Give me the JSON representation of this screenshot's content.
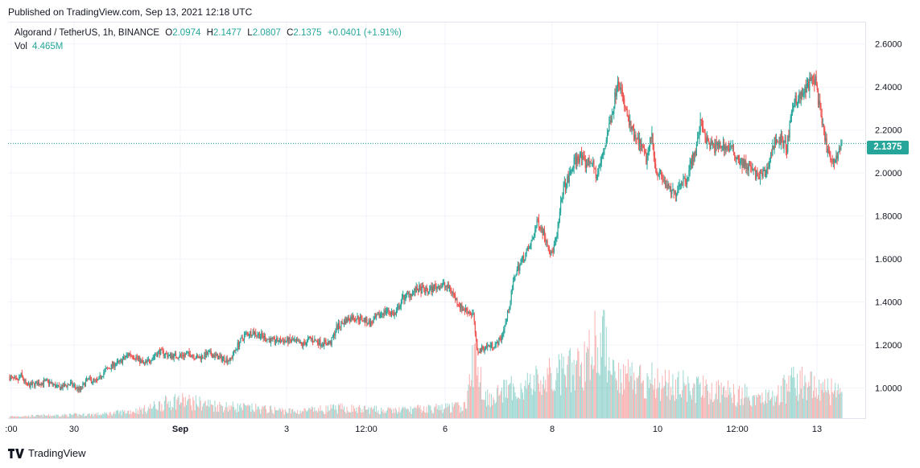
{
  "header": {
    "published": "Published on TradingView.com, Sep 13, 2021 12:18 UTC"
  },
  "legend": {
    "symbol": "Algorand / TetherUS, 1h, BINANCE",
    "open_label": "O",
    "open": "2.0974",
    "high_label": "H",
    "high": "2.1477",
    "low_label": "L",
    "low": "2.0807",
    "close_label": "C",
    "close": "2.1375",
    "change": "+0.0401 (+1.91%)"
  },
  "volume": {
    "label": "Vol",
    "value": "4.465M"
  },
  "last_price": "2.1375",
  "footer": {
    "brand": "TradingView"
  },
  "colors": {
    "up": "#26a69a",
    "down": "#ef5350",
    "grid": "#f0f3fa"
  },
  "chart_data": {
    "type": "candlestick",
    "y_ticks": [
      "2.6000",
      "2.4000",
      "2.2000",
      "2.0000",
      "1.8000",
      "1.6000",
      "1.4000",
      "1.2000",
      "1.0000"
    ],
    "x_ticks": [
      ":00",
      "30",
      "Sep",
      "3",
      "12:00",
      "6",
      "8",
      "10",
      "12:00",
      "13"
    ],
    "ylim": [
      0.86,
      2.7
    ],
    "last_value": 2.1375,
    "price_path": [
      [
        0,
        1.05
      ],
      [
        8,
        1.03
      ],
      [
        12,
        1.06
      ],
      [
        18,
        1.01
      ],
      [
        28,
        1.02
      ],
      [
        40,
        1.03
      ],
      [
        52,
        1.0
      ],
      [
        64,
        1.02
      ],
      [
        74,
        0.99
      ],
      [
        82,
        1.04
      ],
      [
        92,
        1.03
      ],
      [
        100,
        1.08
      ],
      [
        110,
        1.11
      ],
      [
        116,
        1.12
      ],
      [
        126,
        1.16
      ],
      [
        134,
        1.14
      ],
      [
        142,
        1.11
      ],
      [
        152,
        1.15
      ],
      [
        158,
        1.17
      ],
      [
        168,
        1.15
      ],
      [
        180,
        1.15
      ],
      [
        190,
        1.16
      ],
      [
        198,
        1.14
      ],
      [
        210,
        1.16
      ],
      [
        222,
        1.14
      ],
      [
        232,
        1.13
      ],
      [
        240,
        1.2
      ],
      [
        248,
        1.25
      ],
      [
        256,
        1.26
      ],
      [
        266,
        1.24
      ],
      [
        276,
        1.22
      ],
      [
        286,
        1.22
      ],
      [
        298,
        1.22
      ],
      [
        308,
        1.2
      ],
      [
        316,
        1.23
      ],
      [
        328,
        1.21
      ],
      [
        338,
        1.21
      ],
      [
        344,
        1.28
      ],
      [
        352,
        1.31
      ],
      [
        360,
        1.33
      ],
      [
        372,
        1.32
      ],
      [
        380,
        1.3
      ],
      [
        392,
        1.35
      ],
      [
        398,
        1.36
      ],
      [
        406,
        1.34
      ],
      [
        414,
        1.42
      ],
      [
        422,
        1.44
      ],
      [
        430,
        1.46
      ],
      [
        440,
        1.45
      ],
      [
        448,
        1.47
      ],
      [
        456,
        1.48
      ],
      [
        464,
        1.46
      ],
      [
        470,
        1.41
      ],
      [
        476,
        1.37
      ],
      [
        482,
        1.36
      ],
      [
        488,
        1.34
      ],
      [
        492,
        1.17
      ],
      [
        500,
        1.19
      ],
      [
        508,
        1.2
      ],
      [
        512,
        1.2
      ],
      [
        518,
        1.24
      ],
      [
        524,
        1.34
      ],
      [
        532,
        1.53
      ],
      [
        540,
        1.6
      ],
      [
        548,
        1.66
      ],
      [
        556,
        1.78
      ],
      [
        564,
        1.7
      ],
      [
        570,
        1.62
      ],
      [
        576,
        1.7
      ],
      [
        582,
        1.92
      ],
      [
        588,
        1.97
      ],
      [
        594,
        2.05
      ],
      [
        600,
        2.08
      ],
      [
        606,
        2.04
      ],
      [
        612,
        2.06
      ],
      [
        618,
        1.98
      ],
      [
        624,
        2.08
      ],
      [
        630,
        2.2
      ],
      [
        636,
        2.32
      ],
      [
        640,
        2.45
      ],
      [
        646,
        2.33
      ],
      [
        652,
        2.23
      ],
      [
        658,
        2.16
      ],
      [
        664,
        2.13
      ],
      [
        670,
        2.06
      ],
      [
        676,
        2.18
      ],
      [
        680,
        2.02
      ],
      [
        688,
        1.97
      ],
      [
        694,
        1.92
      ],
      [
        700,
        1.9
      ],
      [
        706,
        1.96
      ],
      [
        712,
        1.97
      ],
      [
        718,
        2.06
      ],
      [
        722,
        2.1
      ],
      [
        728,
        2.25
      ],
      [
        734,
        2.14
      ],
      [
        742,
        2.12
      ],
      [
        750,
        2.13
      ],
      [
        760,
        2.11
      ],
      [
        770,
        2.05
      ],
      [
        780,
        2.02
      ],
      [
        788,
        1.98
      ],
      [
        796,
        2.0
      ],
      [
        806,
        2.16
      ],
      [
        812,
        2.15
      ],
      [
        818,
        2.12
      ],
      [
        826,
        2.35
      ],
      [
        832,
        2.35
      ],
      [
        838,
        2.39
      ],
      [
        842,
        2.42
      ],
      [
        848,
        2.44
      ],
      [
        854,
        2.25
      ],
      [
        860,
        2.12
      ],
      [
        866,
        2.03
      ],
      [
        872,
        2.1
      ],
      [
        876,
        2.1375
      ]
    ],
    "volume_path": [
      [
        0,
        0.02
      ],
      [
        100,
        0.05
      ],
      [
        140,
        0.1
      ],
      [
        175,
        0.22
      ],
      [
        220,
        0.15
      ],
      [
        300,
        0.08
      ],
      [
        350,
        0.12
      ],
      [
        400,
        0.09
      ],
      [
        480,
        0.14
      ],
      [
        490,
        0.8
      ],
      [
        500,
        0.25
      ],
      [
        530,
        0.35
      ],
      [
        560,
        0.45
      ],
      [
        600,
        0.6
      ],
      [
        620,
        1.0
      ],
      [
        640,
        0.55
      ],
      [
        700,
        0.4
      ],
      [
        760,
        0.3
      ],
      [
        800,
        0.25
      ],
      [
        830,
        0.45
      ],
      [
        860,
        0.35
      ],
      [
        876,
        0.25
      ]
    ]
  }
}
